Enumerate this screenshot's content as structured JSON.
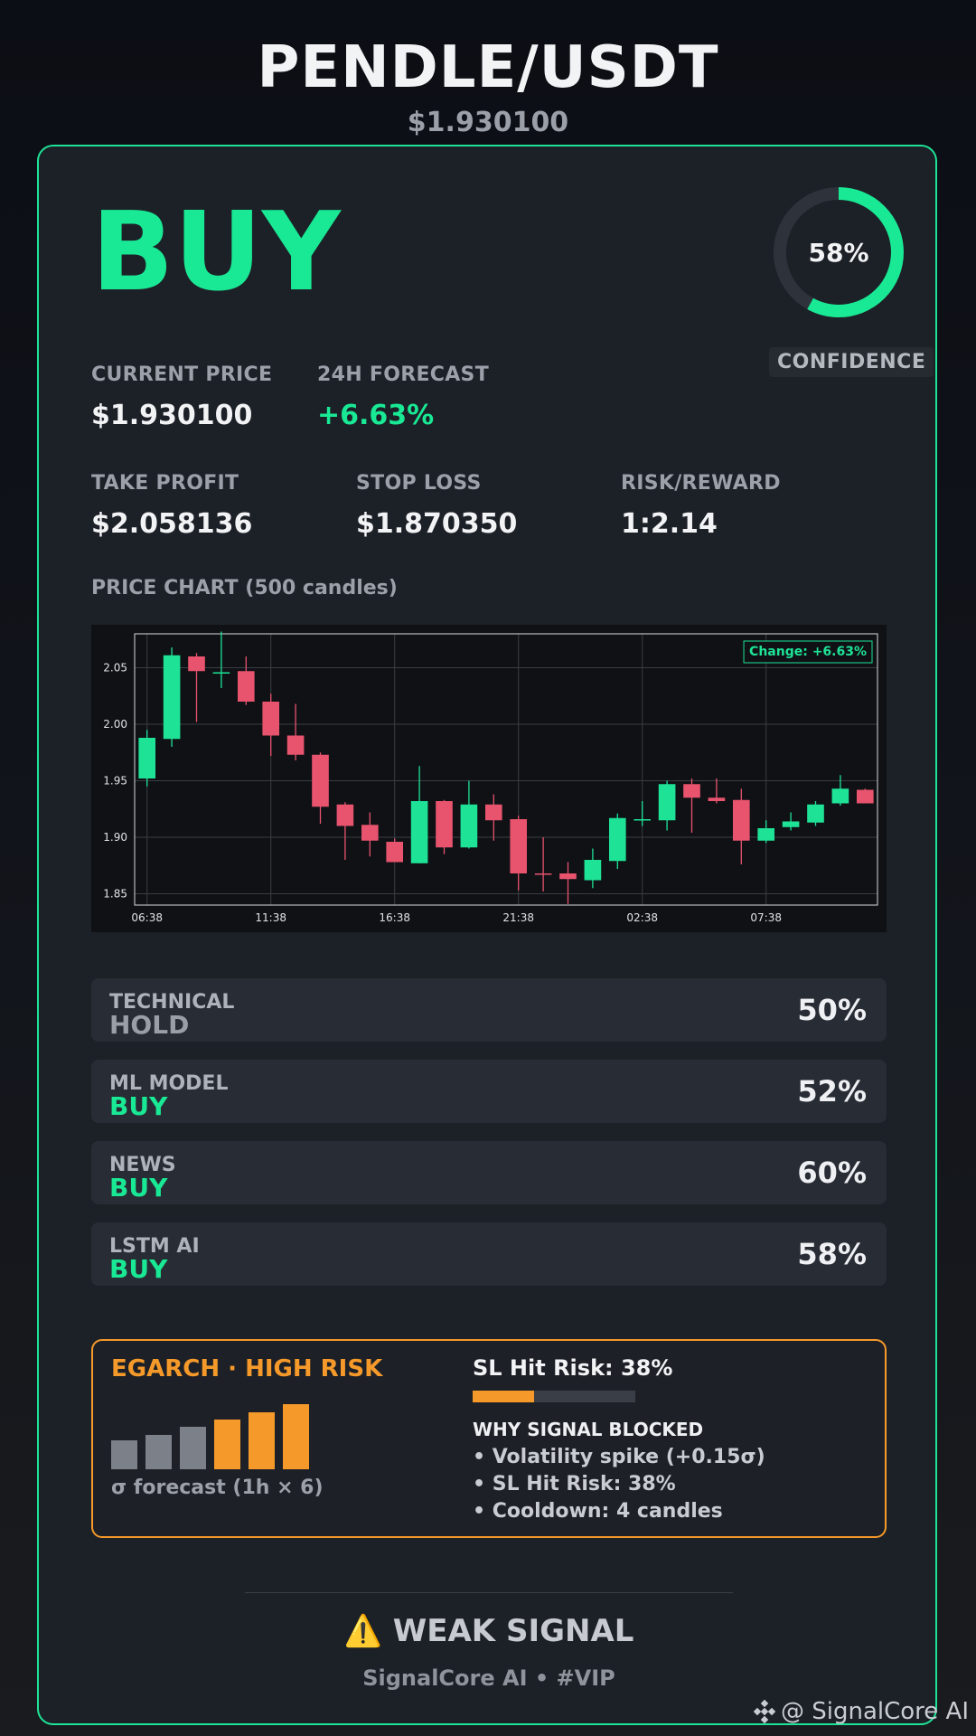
{
  "header": {
    "pair": "PENDLE/USDT",
    "price": "$1.930100"
  },
  "signal": {
    "action": "BUY",
    "confidence_pct": 58,
    "confidence_text": "58%",
    "confidence_label": "CONFIDENCE"
  },
  "stats": {
    "current_price": {
      "label": "CURRENT PRICE",
      "value": "$1.930100"
    },
    "forecast": {
      "label": "24H FORECAST",
      "value": "+6.63%"
    },
    "take_profit": {
      "label": "TAKE PROFIT",
      "value": "$2.058136"
    },
    "stop_loss": {
      "label": "STOP LOSS",
      "value": "$1.870350"
    },
    "risk_reward": {
      "label": "RISK/REWARD",
      "value": "1:2.14"
    }
  },
  "chart_label": "PRICE CHART (500 candles)",
  "chart_data": {
    "type": "candlestick",
    "annotation": "Change: +6.63%",
    "ylim": [
      1.84,
      2.08
    ],
    "yticks": [
      "1.85",
      "1.90",
      "1.95",
      "2.00",
      "2.05"
    ],
    "xticks": [
      "06:38",
      "11:38",
      "16:38",
      "21:38",
      "02:38",
      "07:38"
    ],
    "grid": true,
    "up_color": "#1ee397",
    "down_color": "#e8536e",
    "candles": [
      {
        "o": 1.952,
        "h": 1.995,
        "l": 1.945,
        "c": 1.988
      },
      {
        "o": 1.987,
        "h": 2.068,
        "l": 1.98,
        "c": 2.061
      },
      {
        "o": 2.06,
        "h": 2.063,
        "l": 2.002,
        "c": 2.047
      },
      {
        "o": 2.045,
        "h": 2.082,
        "l": 2.032,
        "c": 2.046
      },
      {
        "o": 2.047,
        "h": 2.06,
        "l": 2.017,
        "c": 2.02
      },
      {
        "o": 2.02,
        "h": 2.027,
        "l": 1.972,
        "c": 1.99
      },
      {
        "o": 1.99,
        "h": 2.018,
        "l": 1.968,
        "c": 1.973
      },
      {
        "o": 1.973,
        "h": 1.975,
        "l": 1.912,
        "c": 1.927
      },
      {
        "o": 1.929,
        "h": 1.931,
        "l": 1.88,
        "c": 1.91
      },
      {
        "o": 1.911,
        "h": 1.922,
        "l": 1.883,
        "c": 1.897
      },
      {
        "o": 1.896,
        "h": 1.899,
        "l": 1.879,
        "c": 1.878
      },
      {
        "o": 1.877,
        "h": 1.963,
        "l": 1.877,
        "c": 1.932
      },
      {
        "o": 1.932,
        "h": 1.933,
        "l": 1.885,
        "c": 1.891
      },
      {
        "o": 1.891,
        "h": 1.95,
        "l": 1.89,
        "c": 1.929
      },
      {
        "o": 1.929,
        "h": 1.938,
        "l": 1.897,
        "c": 1.915
      },
      {
        "o": 1.916,
        "h": 1.919,
        "l": 1.853,
        "c": 1.868
      },
      {
        "o": 1.868,
        "h": 1.9,
        "l": 1.852,
        "c": 1.867
      },
      {
        "o": 1.868,
        "h": 1.878,
        "l": 1.841,
        "c": 1.863
      },
      {
        "o": 1.862,
        "h": 1.89,
        "l": 1.855,
        "c": 1.88
      },
      {
        "o": 1.879,
        "h": 1.921,
        "l": 1.872,
        "c": 1.917
      },
      {
        "o": 1.916,
        "h": 1.932,
        "l": 1.91,
        "c": 1.916
      },
      {
        "o": 1.915,
        "h": 1.95,
        "l": 1.906,
        "c": 1.947
      },
      {
        "o": 1.947,
        "h": 1.952,
        "l": 1.904,
        "c": 1.935
      },
      {
        "o": 1.935,
        "h": 1.952,
        "l": 1.93,
        "c": 1.932
      },
      {
        "o": 1.933,
        "h": 1.943,
        "l": 1.876,
        "c": 1.897
      },
      {
        "o": 1.897,
        "h": 1.915,
        "l": 1.895,
        "c": 1.908
      },
      {
        "o": 1.909,
        "h": 1.922,
        "l": 1.906,
        "c": 1.914
      },
      {
        "o": 1.913,
        "h": 1.932,
        "l": 1.91,
        "c": 1.929
      },
      {
        "o": 1.93,
        "h": 1.955,
        "l": 1.928,
        "c": 1.943
      },
      {
        "o": 1.942,
        "h": 1.943,
        "l": 1.93,
        "c": 1.93
      }
    ]
  },
  "components": [
    {
      "name": "TECHNICAL",
      "signal": "HOLD",
      "pct": "50%",
      "color": "#9a9ea6"
    },
    {
      "name": "ML MODEL",
      "signal": "BUY",
      "pct": "52%",
      "color": "#19e894"
    },
    {
      "name": "NEWS",
      "signal": "BUY",
      "pct": "60%",
      "color": "#19e894"
    },
    {
      "name": "LSTM AI",
      "signal": "BUY",
      "pct": "58%",
      "color": "#19e894"
    }
  ],
  "risk": {
    "title": "EGARCH · HIGH RISK",
    "sigma_label": "σ forecast (1h × 6)",
    "sigma_forecast": [
      0.44,
      0.53,
      0.65,
      0.76,
      0.88,
      1.0
    ],
    "sl_title": "SL Hit Risk: 38%",
    "sl_hit_risk_pct": 38,
    "why_title": "WHY SIGNAL BLOCKED",
    "why_items": [
      "• Volatility spike (+0.15σ)",
      "• SL Hit Risk: 38%",
      "• Cooldown: 4 candles"
    ]
  },
  "footer": {
    "weak_signal": "⚠️ WEAK SIGNAL",
    "brand": "SignalCore AI • #VIP",
    "watermark": "@ SignalCore AI"
  },
  "colors": {
    "accent_green": "#19e894",
    "risk_orange": "#f59a2a",
    "down_red": "#e8536e"
  }
}
